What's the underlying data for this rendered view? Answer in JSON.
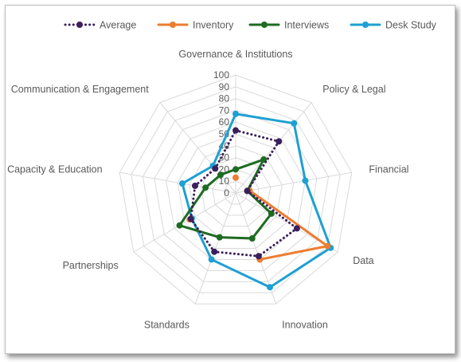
{
  "chart_data": {
    "type": "radar",
    "title": "",
    "categories": [
      "Governance & Institutions",
      "Policy & Legal",
      "Financial",
      "Data",
      "Innovation",
      "Standards",
      "Partnerships",
      "Capacity & Education",
      "Communication & Engagement"
    ],
    "radial_ticks": [
      "0",
      "10",
      "20",
      "30",
      "40",
      "50",
      "60",
      "70",
      "80",
      "90",
      "100"
    ],
    "rlim": [
      0,
      100
    ],
    "grid": true,
    "legend_position": "top",
    "series": [
      {
        "name": "Average",
        "color": "#3b1f5c",
        "style": "dotted",
        "values": [
          53,
          57,
          10,
          60,
          57,
          53,
          44,
          35,
          27
        ]
      },
      {
        "name": "Inventory",
        "color": "#ed7d31",
        "style": "solid",
        "values": [
          13,
          null,
          12,
          90,
          60,
          null,
          45,
          null,
          null
        ]
      },
      {
        "name": "Interviews",
        "color": "#1e6b22",
        "style": "solid",
        "values": [
          20,
          37,
          10,
          35,
          41,
          40,
          55,
          26,
          20
        ]
      },
      {
        "name": "Desk Study",
        "color": "#1ea0d2",
        "style": "solid",
        "values": [
          67,
          77,
          60,
          93,
          85,
          60,
          43,
          46,
          30
        ]
      }
    ]
  }
}
